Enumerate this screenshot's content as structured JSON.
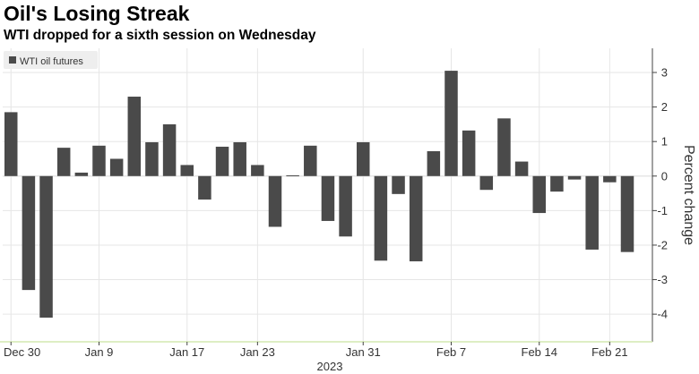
{
  "header": {
    "title": "Oil's Losing Streak",
    "subtitle": "WTI dropped for a sixth session on Wednesday"
  },
  "colors": {
    "bar": "#4a4a4a",
    "grid": "#e6e6e6",
    "axis": "#444444",
    "baseline": "#d4e8b0",
    "legend_bg": "#eeeeee"
  },
  "chart_data": {
    "type": "bar",
    "ylabel": "Percent change",
    "xlabel": "2023",
    "ylim": [
      -4.8,
      3.7
    ],
    "yticks": [
      3,
      2,
      1,
      0,
      -1,
      -2,
      -3,
      -4
    ],
    "ytick_labels": [
      "3",
      "2",
      "1",
      "0",
      "-1",
      "-2",
      "-3",
      "-4"
    ],
    "x_tick_labels": [
      {
        "label": "Dec 30",
        "index": 0
      },
      {
        "label": "Jan 9",
        "index": 5
      },
      {
        "label": "Jan 17",
        "index": 10
      },
      {
        "label": "Jan 23",
        "index": 14
      },
      {
        "label": "Jan 31",
        "index": 20
      },
      {
        "label": "Feb 7",
        "index": 25
      },
      {
        "label": "Feb 14",
        "index": 30
      },
      {
        "label": "Feb 21",
        "index": 34
      }
    ],
    "grid": true,
    "legend_position": "top-left",
    "series": [
      {
        "name": "WTI oil futures",
        "values": [
          1.85,
          -3.3,
          -4.1,
          0.82,
          0.1,
          0.88,
          0.5,
          2.3,
          0.98,
          1.5,
          0.32,
          -0.68,
          0.85,
          0.98,
          0.32,
          -1.47,
          0.02,
          0.88,
          -1.3,
          -1.75,
          0.98,
          -2.45,
          -0.52,
          -2.47,
          0.72,
          3.05,
          1.32,
          -0.4,
          1.67,
          0.42,
          -1.07,
          -0.45,
          -0.1,
          -2.13,
          -0.18,
          -2.2
        ]
      }
    ]
  }
}
